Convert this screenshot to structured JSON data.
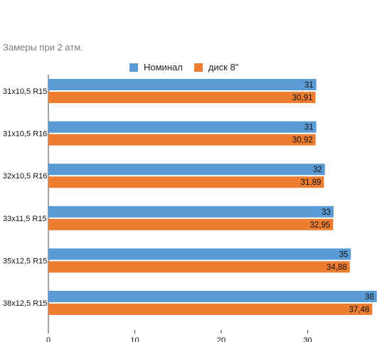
{
  "title": "Замеры при 2 атм.",
  "colors": {
    "series0": "#5b9bd5",
    "series1": "#ed7d31",
    "axis": "#444444"
  },
  "chart_data": {
    "type": "bar",
    "orientation": "horizontal",
    "title": "Замеры при 2 атм.",
    "categories": [
      "31x10,5 R15",
      "31x10,5 R16",
      "32x10,5 R16",
      "33x11,5 R15",
      "35x12,5 R15",
      "38x12,5 R15"
    ],
    "series": [
      {
        "name": "Номинал",
        "values": [
          31,
          31,
          32,
          33,
          35,
          38
        ],
        "labels": [
          "31",
          "31",
          "32",
          "33",
          "35",
          "38"
        ]
      },
      {
        "name": "диск 8\"",
        "values": [
          30.91,
          30.92,
          31.89,
          32.95,
          34.88,
          37.48
        ],
        "labels": [
          "30,91",
          "30,92",
          "31,89",
          "32,95",
          "34,88",
          "37,48"
        ]
      }
    ],
    "xlim": [
      0,
      38
    ],
    "xticks": [
      "0",
      "10",
      "20",
      "30"
    ],
    "grid": false,
    "legend": "top"
  }
}
